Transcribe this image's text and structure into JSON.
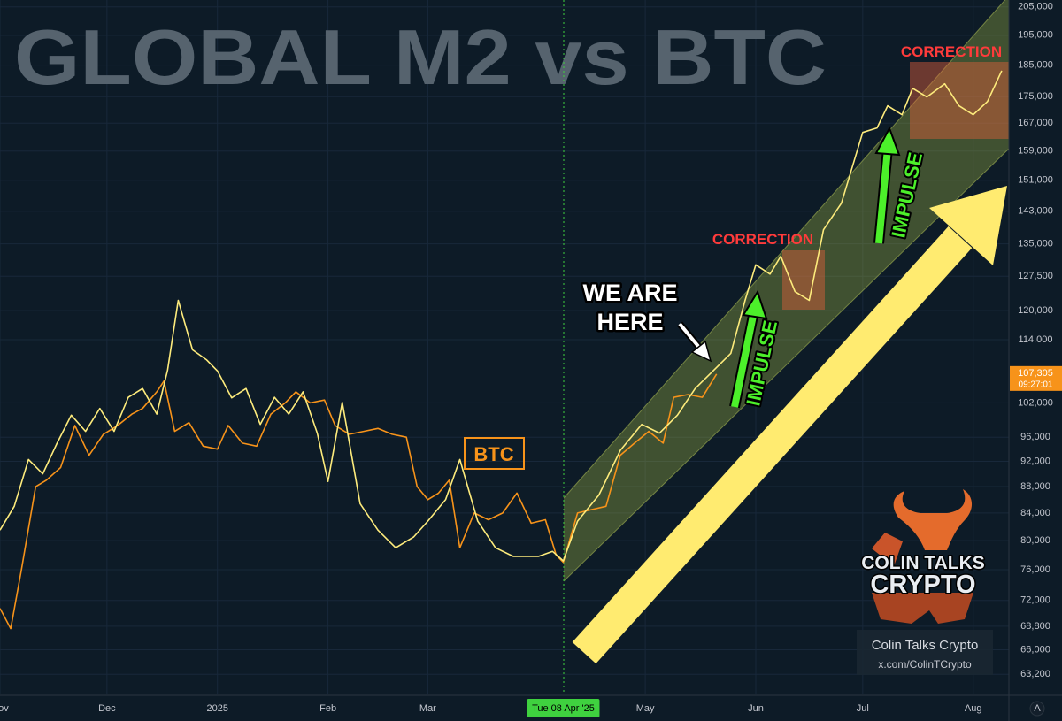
{
  "chart_data": {
    "type": "line",
    "title": "GLOBAL M2 vs BTC",
    "log_scale": true,
    "grid": true,
    "xlim": [
      "2024-11-01",
      "2025-08-11"
    ],
    "xticks": [
      {
        "value": "2024-11-01",
        "label": "Nov"
      },
      {
        "value": "2024-12-01",
        "label": "Dec"
      },
      {
        "value": "2025-01-01",
        "label": "2025"
      },
      {
        "value": "2025-02-01",
        "label": "Feb"
      },
      {
        "value": "2025-03-01",
        "label": "Mar"
      },
      {
        "value": "2025-05-01",
        "label": "May"
      },
      {
        "value": "2025-06-01",
        "label": "Jun"
      },
      {
        "value": "2025-07-01",
        "label": "Jul"
      },
      {
        "value": "2025-08-01",
        "label": "Aug"
      }
    ],
    "ylim": [
      61000,
      207500
    ],
    "yticks": [
      {
        "value": 63200,
        "label": "63,200"
      },
      {
        "value": 66000,
        "label": "66,000"
      },
      {
        "value": 68800,
        "label": "68,800"
      },
      {
        "value": 72000,
        "label": "72,000"
      },
      {
        "value": 76000,
        "label": "76,000"
      },
      {
        "value": 80000,
        "label": "80,000"
      },
      {
        "value": 84000,
        "label": "84,000"
      },
      {
        "value": 88000,
        "label": "88,000"
      },
      {
        "value": 92000,
        "label": "92,000"
      },
      {
        "value": 96000,
        "label": "96,000"
      },
      {
        "value": 102000,
        "label": "102,000"
      },
      {
        "value": 114000,
        "label": "114,000"
      },
      {
        "value": 120000,
        "label": "120,000"
      },
      {
        "value": 127500,
        "label": "127,500"
      },
      {
        "value": 135000,
        "label": "135,000"
      },
      {
        "value": 143000,
        "label": "143,000"
      },
      {
        "value": 151000,
        "label": "151,000"
      },
      {
        "value": 159000,
        "label": "159,000"
      },
      {
        "value": 167000,
        "label": "167,000"
      },
      {
        "value": 175000,
        "label": "175,000"
      },
      {
        "value": 185000,
        "label": "185,000"
      },
      {
        "value": 195000,
        "label": "195,000"
      },
      {
        "value": 205000,
        "label": "205,000"
      }
    ],
    "series": [
      {
        "name": "BTC",
        "color": "#f7931a",
        "x": [
          "2024-11-01",
          "2024-11-04",
          "2024-11-07",
          "2024-11-11",
          "2024-11-14",
          "2024-11-18",
          "2024-11-22",
          "2024-11-26",
          "2024-11-30",
          "2024-12-04",
          "2024-12-08",
          "2024-12-11",
          "2024-12-15",
          "2024-12-17",
          "2024-12-20",
          "2024-12-24",
          "2024-12-28",
          "2025-01-01",
          "2025-01-04",
          "2025-01-08",
          "2025-01-12",
          "2025-01-16",
          "2025-01-20",
          "2025-01-23",
          "2025-01-27",
          "2025-01-31",
          "2025-02-03",
          "2025-02-07",
          "2025-02-11",
          "2025-02-15",
          "2025-02-19",
          "2025-02-23",
          "2025-02-26",
          "2025-03-01",
          "2025-03-04",
          "2025-03-07",
          "2025-03-10",
          "2025-03-14",
          "2025-03-18",
          "2025-03-22",
          "2025-03-26",
          "2025-03-30",
          "2025-04-03",
          "2025-04-06",
          "2025-04-08",
          "2025-04-12",
          "2025-04-16",
          "2025-04-20",
          "2025-04-24",
          "2025-04-28",
          "2025-05-02",
          "2025-05-06",
          "2025-05-09",
          "2025-05-13",
          "2025-05-17",
          "2025-05-21"
        ],
        "values": [
          71000,
          68500,
          76000,
          88000,
          89000,
          91000,
          98000,
          93000,
          96500,
          98000,
          100000,
          101000,
          104000,
          106000,
          97000,
          98500,
          94500,
          94000,
          98000,
          95000,
          94500,
          100000,
          102000,
          104000,
          102000,
          102500,
          98000,
          96500,
          97000,
          97500,
          96500,
          96000,
          88000,
          86000,
          87000,
          89000,
          79000,
          84000,
          83000,
          84000,
          87000,
          82500,
          83000,
          78000,
          77000,
          84000,
          84500,
          85000,
          93000,
          95000,
          97000,
          95000,
          103000,
          103500,
          103000,
          107305
        ]
      },
      {
        "color": "#fdeb7c",
        "x": [
          "2024-11-01",
          "2024-11-05",
          "2024-11-09",
          "2024-11-13",
          "2024-11-17",
          "2024-11-21",
          "2024-11-25",
          "2024-11-29",
          "2024-12-03",
          "2024-12-07",
          "2024-12-11",
          "2024-12-15",
          "2024-12-18",
          "2024-12-21",
          "2024-12-25",
          "2024-12-29",
          "2025-01-01",
          "2025-01-05",
          "2025-01-09",
          "2025-01-13",
          "2025-01-17",
          "2025-01-21",
          "2025-01-25",
          "2025-01-29",
          "2025-02-01",
          "2025-02-05",
          "2025-02-10",
          "2025-02-15",
          "2025-02-20",
          "2025-02-25",
          "2025-03-01",
          "2025-03-06",
          "2025-03-10",
          "2025-03-15",
          "2025-03-20",
          "2025-03-25",
          "2025-04-01",
          "2025-04-05",
          "2025-04-08",
          "2025-04-12",
          "2025-04-18",
          "2025-04-24",
          "2025-04-30",
          "2025-05-05",
          "2025-05-10",
          "2025-05-15",
          "2025-05-20",
          "2025-05-25",
          "2025-05-29",
          "2025-06-01",
          "2025-06-05",
          "2025-06-08",
          "2025-06-12",
          "2025-06-16",
          "2025-06-20",
          "2025-06-25",
          "2025-07-01",
          "2025-07-05",
          "2025-07-08",
          "2025-07-12",
          "2025-07-15",
          "2025-07-19",
          "2025-07-24",
          "2025-07-28",
          "2025-08-01",
          "2025-08-05",
          "2025-08-09"
        ],
        "values": [
          81500,
          85000,
          92300,
          90000,
          95000,
          99800,
          97000,
          101000,
          97000,
          103000,
          104600,
          100000,
          108000,
          122200,
          112000,
          110000,
          107900,
          102900,
          104600,
          98200,
          103000,
          100000,
          104000,
          96700,
          88800,
          102100,
          85400,
          81500,
          79000,
          80500,
          82800,
          86000,
          92300,
          82800,
          79000,
          77800,
          77800,
          78500,
          77200,
          82800,
          86700,
          93800,
          98200,
          96700,
          99800,
          104600,
          107900,
          111300,
          122200,
          130100,
          128000,
          132100,
          124100,
          122200,
          138400,
          145000,
          164300,
          165600,
          172200,
          169500,
          177600,
          174900,
          179000,
          172200,
          169500,
          173500,
          183200
        ]
      }
    ],
    "crosshair": {
      "value": "2025-04-08",
      "label": "Tue 08 Apr '25"
    },
    "last_price": {
      "value": 107305,
      "label": "107,305",
      "countdown": "09:27:01"
    },
    "annotations": {
      "we_are_here": [
        "WE ARE",
        "HERE"
      ],
      "corrections": [
        "CORRECTION",
        "CORRECTION"
      ],
      "impulses": [
        "IMPULSE",
        "IMPULSE"
      ]
    },
    "scale_button": "A"
  },
  "branding": {
    "logo": [
      "COLIN TALKS",
      "CRYPTO"
    ],
    "name": "Colin Talks Crypto",
    "handle": "x.com/ColinTCrypto"
  }
}
